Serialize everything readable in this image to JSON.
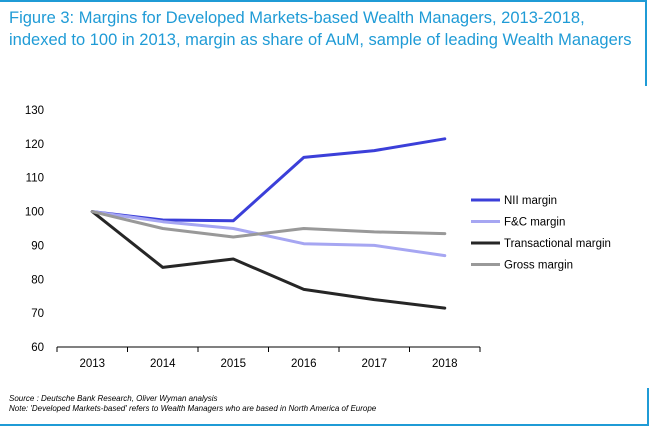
{
  "title": "Figure 3: Margins for Developed Markets-based Wealth Managers, 2013-2018, indexed to 100 in 2013, margin as share of AuM, sample of leading Wealth Managers",
  "footer": {
    "source": "Source : Deutsche Bank Research, Oliver Wyman analysis",
    "note": "Note: 'Developed Markets-based' refers to Wealth Managers who are based in North America of Europe"
  },
  "colors": {
    "accent": "#1f9bd6"
  },
  "chart_data": {
    "type": "line",
    "x": [
      "2013",
      "2014",
      "2015",
      "2016",
      "2017",
      "2018"
    ],
    "ylim": [
      60,
      130
    ],
    "yticks": [
      60,
      70,
      80,
      90,
      100,
      110,
      120,
      130
    ],
    "grid": false,
    "legend_position": "right",
    "series": [
      {
        "name": "NII margin",
        "color": "#3b3fd9",
        "values": [
          100,
          97.5,
          97.3,
          116,
          118,
          121.5
        ]
      },
      {
        "name": "F&C margin",
        "color": "#a6a6f2",
        "values": [
          100,
          97,
          95,
          90.5,
          90,
          87
        ]
      },
      {
        "name": "Transactional margin",
        "color": "#262626",
        "values": [
          100,
          83.5,
          86,
          77,
          74,
          71.5
        ]
      },
      {
        "name": "Gross margin",
        "color": "#999999",
        "values": [
          100,
          95,
          92.5,
          95,
          94,
          93.5
        ]
      }
    ]
  }
}
